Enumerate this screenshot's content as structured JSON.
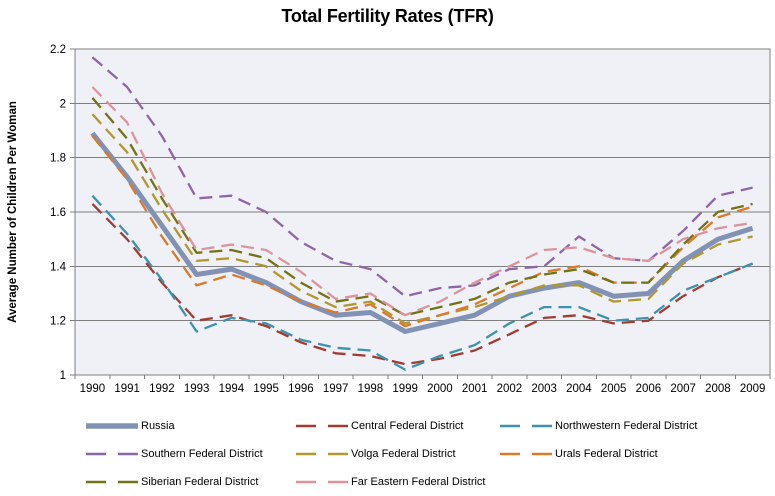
{
  "chart": {
    "title": "Total Fertility Rates (TFR)",
    "y_axis_label": "Average Number of Children Per Woman"
  },
  "chart_data": {
    "type": "line",
    "title": "Total Fertility Rates (TFR)",
    "xlabel": "",
    "ylabel": "Average Number of Children Per Woman",
    "categories": [
      "1990",
      "1991",
      "1992",
      "1993",
      "1994",
      "1995",
      "1996",
      "1997",
      "1998",
      "1999",
      "2000",
      "2001",
      "2002",
      "2003",
      "2004",
      "2005",
      "2006",
      "2007",
      "2008",
      "2009"
    ],
    "ylim": [
      1,
      2.2
    ],
    "y_ticks": [
      {
        "value": 1.0,
        "label": "1"
      },
      {
        "value": 1.2,
        "label": "1.2"
      },
      {
        "value": 1.4,
        "label": "1.4"
      },
      {
        "value": 1.6,
        "label": "1.6"
      },
      {
        "value": 1.8,
        "label": "1.8"
      },
      {
        "value": 2.0,
        "label": "2"
      },
      {
        "value": 2.2,
        "label": "2.2"
      }
    ],
    "grid": true,
    "legend_position": "bottom",
    "plot_bg_color": "#eff1f6",
    "grid_color": "#7f7f7f",
    "series": [
      {
        "name": "Russia",
        "color": "#8192b4",
        "style": "solid",
        "width": 5,
        "values": [
          1.89,
          1.73,
          1.55,
          1.37,
          1.39,
          1.34,
          1.27,
          1.22,
          1.23,
          1.16,
          1.19,
          1.22,
          1.29,
          1.32,
          1.34,
          1.29,
          1.3,
          1.42,
          1.5,
          1.54
        ]
      },
      {
        "name": "Central Federal District",
        "color": "#a03c34",
        "style": "dashed",
        "width": 2.3,
        "values": [
          1.63,
          1.5,
          1.34,
          1.2,
          1.22,
          1.18,
          1.12,
          1.08,
          1.07,
          1.04,
          1.06,
          1.09,
          1.15,
          1.21,
          1.22,
          1.19,
          1.2,
          1.29,
          1.36,
          1.41
        ]
      },
      {
        "name": "Northwestern Federal District",
        "color": "#3e93aa",
        "style": "dashed",
        "width": 2.3,
        "values": [
          1.66,
          1.52,
          1.35,
          1.16,
          1.21,
          1.19,
          1.13,
          1.1,
          1.09,
          1.02,
          1.07,
          1.11,
          1.19,
          1.25,
          1.25,
          1.2,
          1.21,
          1.31,
          1.36,
          1.41
        ]
      },
      {
        "name": "Southern Federal District",
        "color": "#9065a3",
        "style": "dashed",
        "width": 2.3,
        "values": [
          2.17,
          2.06,
          1.88,
          1.65,
          1.66,
          1.6,
          1.49,
          1.42,
          1.39,
          1.29,
          1.32,
          1.33,
          1.39,
          1.4,
          1.51,
          1.43,
          1.42,
          1.53,
          1.66,
          1.69
        ]
      },
      {
        "name": "Volga Federal District",
        "color": "#b0982e",
        "style": "dashed",
        "width": 2.3,
        "values": [
          1.96,
          1.82,
          1.61,
          1.42,
          1.43,
          1.4,
          1.31,
          1.25,
          1.27,
          1.19,
          1.22,
          1.25,
          1.29,
          1.33,
          1.33,
          1.27,
          1.28,
          1.41,
          1.48,
          1.51
        ]
      },
      {
        "name": "Urals Federal District",
        "color": "#d87b2d",
        "style": "dashed",
        "width": 2.3,
        "values": [
          1.88,
          1.72,
          1.51,
          1.33,
          1.37,
          1.33,
          1.27,
          1.23,
          1.26,
          1.18,
          1.22,
          1.26,
          1.32,
          1.38,
          1.4,
          1.34,
          1.34,
          1.47,
          1.58,
          1.62
        ]
      },
      {
        "name": "Siberian Federal District",
        "color": "#737217",
        "style": "dashed",
        "width": 2.3,
        "values": [
          2.02,
          1.87,
          1.65,
          1.45,
          1.46,
          1.43,
          1.34,
          1.27,
          1.29,
          1.22,
          1.25,
          1.28,
          1.34,
          1.37,
          1.39,
          1.34,
          1.34,
          1.48,
          1.6,
          1.63
        ]
      },
      {
        "name": "Far Eastern Federal District",
        "color": "#db949d",
        "style": "dashed",
        "width": 2.3,
        "values": [
          2.06,
          1.93,
          1.67,
          1.46,
          1.48,
          1.46,
          1.38,
          1.28,
          1.3,
          1.22,
          1.27,
          1.34,
          1.4,
          1.46,
          1.47,
          1.43,
          1.42,
          1.5,
          1.54,
          1.56
        ]
      }
    ]
  }
}
